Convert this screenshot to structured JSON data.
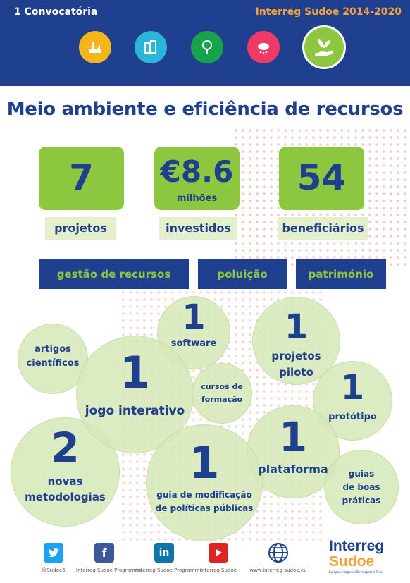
{
  "header": {
    "call_label": "1 Convocatória",
    "programme": "Interreg Sudoe 2014-2020",
    "theme_icons": [
      "industry-icon",
      "building-icon",
      "tree-icon",
      "weather-icon",
      "plant-hand-icon"
    ]
  },
  "title": "Meio ambiente e eficiência de recursos",
  "stats": [
    {
      "value": "7",
      "sub": "",
      "label": "projetos"
    },
    {
      "value": "€8.6",
      "sub": "milhões",
      "label": "investidos"
    },
    {
      "value": "54",
      "sub": "",
      "label": "beneficiários"
    }
  ],
  "tags": [
    "gestão de recursos",
    "poluição",
    "património"
  ],
  "outputs": {
    "artigos": "artigos\ncientíficos",
    "jogo_num": "1",
    "jogo_label": "jogo interativo",
    "software_num": "1",
    "software_label": "software",
    "cursos": "cursos de\nformação",
    "piloto_num": "1",
    "piloto_label": "projetos\npiloto",
    "prototipo_num": "1",
    "prototipo_label": "protótipo",
    "metod_num": "2",
    "metod_label": "novas\nmetodologias",
    "guia_num": "1",
    "guia_label": "guia de modificação\nde políticas públicas",
    "plataforma_num": "1",
    "plataforma_label": "plataforma",
    "boas": "guias\nde boas\npráticas"
  },
  "footer": {
    "social": [
      {
        "icon": "twitter-icon",
        "caption": "@Sudoe5",
        "color": "#1da1f2"
      },
      {
        "icon": "facebook-icon",
        "caption": "Interreg Sudoe Programme",
        "color": "#3b5998"
      },
      {
        "icon": "linkedin-icon",
        "caption": "Interreg Sudoe Programme",
        "color": "#0e76a8"
      },
      {
        "icon": "youtube-icon",
        "caption": "Interreg Sudoe",
        "color": "#e02424"
      },
      {
        "icon": "globe-icon",
        "caption": "www.interreg-sudoe.eu",
        "color": "#1f3f8f"
      }
    ],
    "logo_line1": "Interreg",
    "logo_line2": "Sudoe",
    "logo_line3": "European Regional Development Fund"
  },
  "colors": {
    "navy": "#1f3f8f",
    "green": "#8dc63f",
    "orange": "#f4a23c"
  }
}
